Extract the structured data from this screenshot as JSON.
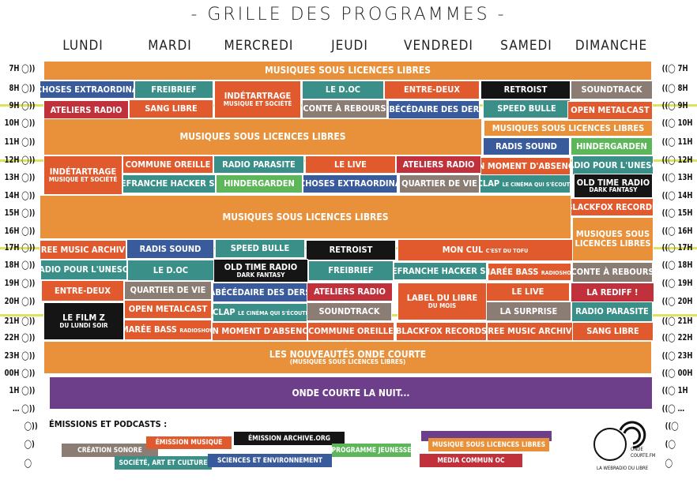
{
  "title": "- GRILLE DES PROGRAMMES -",
  "days": [
    "LUNDI",
    "MARDI",
    "MERCREDI",
    "JEUDI",
    "VENDREDI",
    "SAMEDI",
    "DIMANCHE"
  ],
  "hours_left": [
    "7H",
    "8H",
    "9H",
    "10H",
    "11H",
    "12H",
    "13H",
    "14H",
    "15H",
    "16H",
    "17H",
    "18H",
    "19H",
    "20H",
    "21H",
    "22H",
    "23H",
    "00H",
    "1H",
    "…"
  ],
  "hours_right": [
    "7H",
    "8H",
    "9H",
    "10H",
    "11H",
    "12H",
    "13H",
    "14H",
    "15H",
    "16H",
    "17H",
    "18H",
    "19H",
    "20H",
    "21H",
    "22H",
    "23H",
    "00H",
    "1H",
    "…"
  ],
  "colors": {
    "orange": "#e8913a",
    "redorange": "#e05a2d",
    "teal": "#3a9088",
    "blue": "#3a5b9b",
    "black": "#151515",
    "gray": "#8b7d74",
    "red": "#c0313c",
    "green": "#5db65a",
    "purple": "#6d3f8b",
    "highlight": "#dde35a"
  },
  "blocks": [
    {
      "t": "MUSIQUES SOUS LICENCES LIBRES",
      "c": "orange"
    },
    {
      "t": "DES CHOSES EXTRAORDINAIRES",
      "c": "blue"
    },
    {
      "t": "FREIBRIEF",
      "c": "teal"
    },
    {
      "t": "INDÉTARTRAGE",
      "s": "MUSIQUE ET SOCIÉTÉ",
      "c": "redorange"
    },
    {
      "t": "LE D.OC",
      "c": "teal"
    },
    {
      "t": "ENTRE-DEUX",
      "c": "redorange"
    },
    {
      "t": "RETROIST",
      "c": "black"
    },
    {
      "t": "SOUNDTRACK",
      "c": "gray"
    },
    {
      "t": "ATELIERS RADIO",
      "c": "red"
    },
    {
      "t": "SANG LIBRE",
      "c": "redorange"
    },
    {
      "t": "CONTE À REBOURS",
      "c": "gray"
    },
    {
      "t": "ABÉCÉDAIRE DES DERS",
      "c": "blue"
    },
    {
      "t": "SPEED BULLE",
      "c": "teal"
    },
    {
      "t": "OPEN METALCAST",
      "c": "redorange"
    },
    {
      "t": "MUSIQUES SOUS LICENCES LIBRES",
      "c": "orange"
    },
    {
      "t": "MUSIQUES SOUS  LICENCES LIBRES",
      "c": "orange"
    },
    {
      "t": "RADIS SOUND",
      "c": "blue"
    },
    {
      "t": "HINDERGARDEN",
      "c": "green"
    },
    {
      "t": "INDÉTARTRAGE",
      "s": "MUSIQUE ET SOCIÉTÉ",
      "c": "redorange"
    },
    {
      "t": "COMMUNE OREILLE",
      "c": "redorange"
    },
    {
      "t": "RADIO PARASITE",
      "c": "teal"
    },
    {
      "t": "LE LIVE",
      "c": "redorange"
    },
    {
      "t": "ATELIERS RADIO",
      "c": "red"
    },
    {
      "t": "UN MOMENT D'ABSENCE",
      "c": "redorange"
    },
    {
      "t": "RADIO POUR L'UNESCO",
      "c": "teal"
    },
    {
      "t": "VILLEFRANCHE HACKER SHOW",
      "c": "teal"
    },
    {
      "t": "HINDERGARDEN",
      "c": "green"
    },
    {
      "t": "DES CHOSES EXTRAORDINAIRES",
      "c": "blue"
    },
    {
      "t": "QUARTIER DE VIE",
      "c": "gray"
    },
    {
      "t": "CLAP",
      "x": "LE CINÉMA QUI S'ÉCOUTE",
      "c": "teal"
    },
    {
      "t": "OLD TIME RADIO",
      "s": "DARK FANTASY",
      "c": "black"
    },
    {
      "t": "MUSIQUES SOUS LICENCES LIBRES",
      "c": "orange"
    },
    {
      "t": "BLACKFOX RECORDS",
      "c": "redorange"
    },
    {
      "t": "MUSIQUES SOUS",
      "s": "LICENCES LIBRES",
      "c": "orange"
    },
    {
      "t": "FREE MUSIC ARCHIVE",
      "c": "redorange"
    },
    {
      "t": "RADIS SOUND",
      "c": "blue"
    },
    {
      "t": "SPEED BULLE",
      "c": "teal"
    },
    {
      "t": "RETROIST",
      "c": "black"
    },
    {
      "t": "MON CUL",
      "x": "C'EST DU TOFU",
      "c": "redorange"
    },
    {
      "t": "RADIO POUR L'UNESCO",
      "c": "teal"
    },
    {
      "t": "LE D.OC",
      "c": "teal"
    },
    {
      "t": "OLD TIME RADIO",
      "s": "DARK FANTASY",
      "c": "black"
    },
    {
      "t": "FREIBRIEF",
      "c": "teal"
    },
    {
      "t": "VILLEFRANCHE HACKER SHOW",
      "c": "teal"
    },
    {
      "t": "MARÉE BASS",
      "x": "RADIOSHOW",
      "c": "redorange"
    },
    {
      "t": "CONTE À REBOURS",
      "c": "gray"
    },
    {
      "t": "ENTRE-DEUX",
      "c": "redorange"
    },
    {
      "t": "QUARTIER DE VIE",
      "c": "gray"
    },
    {
      "t": "ABÉCÉDAIRE DES DERS",
      "c": "blue"
    },
    {
      "t": "ATELIERS RADIO",
      "c": "red"
    },
    {
      "t": "LABEL DU LIBRE",
      "s": "DU MOIS",
      "c": "redorange"
    },
    {
      "t": "LE LIVE",
      "c": "redorange"
    },
    {
      "t": "LA REDIFF !",
      "c": "red"
    },
    {
      "t": "LE FILM Z",
      "s": "DU LUNDI SOIR",
      "c": "black"
    },
    {
      "t": "OPEN METALCAST",
      "c": "redorange"
    },
    {
      "t": "CLAP",
      "x": "LE CINÉMA QUI S'ÉCOUTE",
      "c": "teal"
    },
    {
      "t": "SOUNDTRACK",
      "c": "gray"
    },
    {
      "t": "LA SURPRISE",
      "c": "gray"
    },
    {
      "t": "RADIO PARASITE",
      "c": "teal"
    },
    {
      "t": "MARÉE BASS",
      "x": "RADIOSHOW",
      "c": "redorange"
    },
    {
      "t": "UN MOMENT D'ABSENCE",
      "c": "redorange"
    },
    {
      "t": "COMMUNE OREILLE",
      "c": "redorange"
    },
    {
      "t": "BLACKFOX RECORDS",
      "c": "redorange"
    },
    {
      "t": "FREE MUSIC ARCHIVE",
      "c": "redorange"
    },
    {
      "t": "SANG LIBRE",
      "c": "redorange"
    },
    {
      "t": "LES NOUVEAUTÉS ONDE COURTE",
      "s": "(MUSIQUES SOUS LICENCES LIBRES)",
      "c": "orange"
    },
    {
      "t": "ONDE COURTE LA NUIT...",
      "c": "purple"
    }
  ],
  "legend": {
    "heading": "ÉMISSIONS ET PODCASTS :",
    "tags": [
      {
        "t": "CRÉATION SONORE",
        "c": "gray"
      },
      {
        "t": "ÉMISSION MUSIQUE",
        "c": "redorange"
      },
      {
        "t": "ÉMISSION  ARCHIVE.ORG",
        "c": "black"
      },
      {
        "t": "PROGRAMME JEUNESSE",
        "c": "green"
      },
      {
        "t": "",
        "c": "purple"
      },
      {
        "t": "MUSIQUE SOUS LICENCES LIBRES",
        "c": "orange"
      },
      {
        "t": "SOCIÉTÉ, ART ET CULTURE",
        "c": "teal"
      },
      {
        "t": "SCIENCES ET ENVIRONNEMENT",
        "c": "blue"
      },
      {
        "t": "MEDIA COMMUN OC",
        "c": "red"
      }
    ]
  },
  "logo": {
    "name": "ONDE COURTE",
    "suffix": "FM",
    "tagline": "LA WEBRADIO DU LIBRE"
  }
}
